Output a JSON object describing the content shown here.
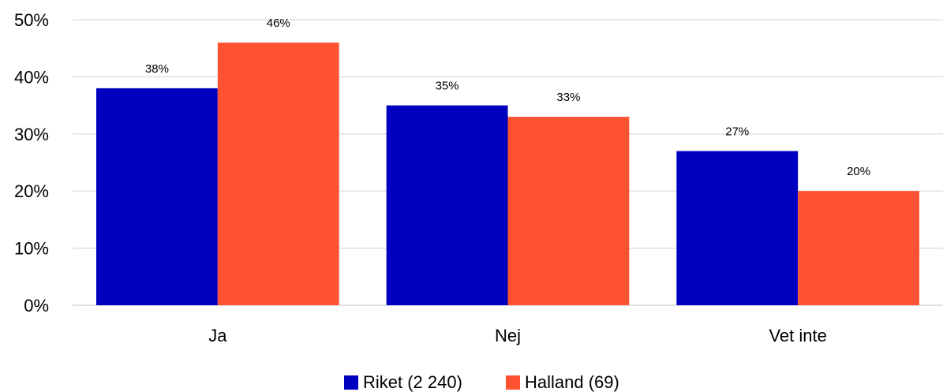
{
  "chart_data": {
    "type": "bar",
    "title": "",
    "xlabel": "",
    "ylabel": "",
    "categories": [
      "Ja",
      "Nej",
      "Vet inte"
    ],
    "series": [
      {
        "name": "Riket (2 240)",
        "color": "#0000C0",
        "values": [
          38,
          35,
          27
        ],
        "labels": [
          "38%",
          "35%",
          "27%"
        ]
      },
      {
        "name": "Halland (69)",
        "color": "#FF5233",
        "values": [
          46,
          33,
          20
        ],
        "labels": [
          "46%",
          "33%",
          "20%"
        ]
      }
    ],
    "ylim": [
      0,
      50
    ],
    "yticks": [
      0,
      10,
      20,
      30,
      40,
      50
    ],
    "ytick_labels": [
      "0%",
      "10%",
      "20%",
      "30%",
      "40%",
      "50%"
    ],
    "grid": true,
    "gridline_color": "#D9D9D9",
    "legend_position": "bottom"
  }
}
